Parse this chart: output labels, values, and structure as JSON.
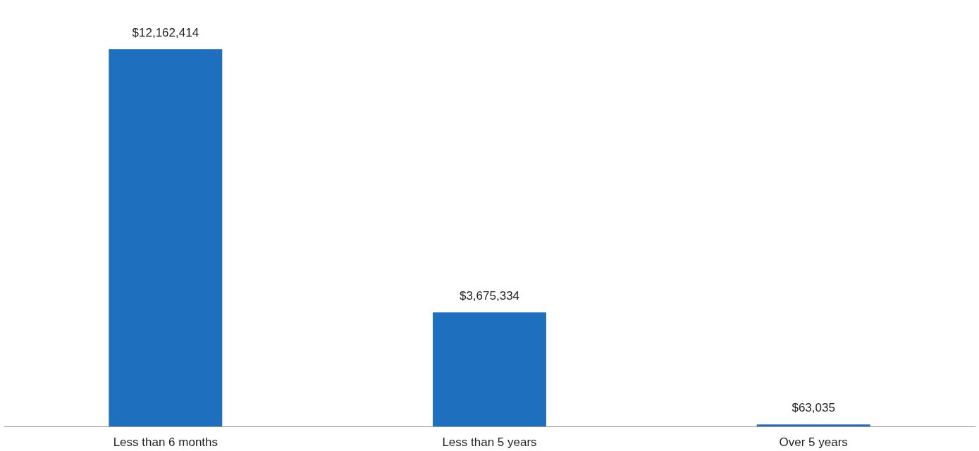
{
  "chart_data": {
    "type": "bar",
    "categories": [
      "Less than 6 months",
      "Less than 5 years",
      "Over 5 years"
    ],
    "values": [
      12162414,
      3675334,
      63035
    ],
    "color": "#1f6fbf",
    "data_labels": true,
    "value_labels": [
      "$12,162,414",
      "$3,675,334",
      "$63,035"
    ],
    "grid": false
  }
}
